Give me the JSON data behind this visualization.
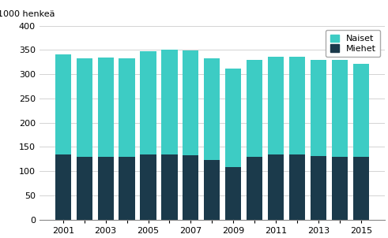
{
  "years": [
    2001,
    2002,
    2003,
    2004,
    2005,
    2006,
    2007,
    2008,
    2009,
    2010,
    2011,
    2012,
    2013,
    2014,
    2015
  ],
  "miehet": [
    134,
    130,
    130,
    130,
    134,
    134,
    133,
    123,
    108,
    130,
    134,
    134,
    131,
    129,
    129
  ],
  "naiset": [
    206,
    203,
    205,
    203,
    213,
    216,
    216,
    210,
    203,
    199,
    202,
    202,
    198,
    200,
    193
  ],
  "color_miehet": "#1b3a4b",
  "color_naiset": "#3dccc4",
  "top_label": "1000 henkeä",
  "ylim": [
    0,
    400
  ],
  "yticks": [
    0,
    50,
    100,
    150,
    200,
    250,
    300,
    350,
    400
  ],
  "legend_naiset": "Naiset",
  "legend_miehet": "Miehet",
  "bar_width": 0.75
}
